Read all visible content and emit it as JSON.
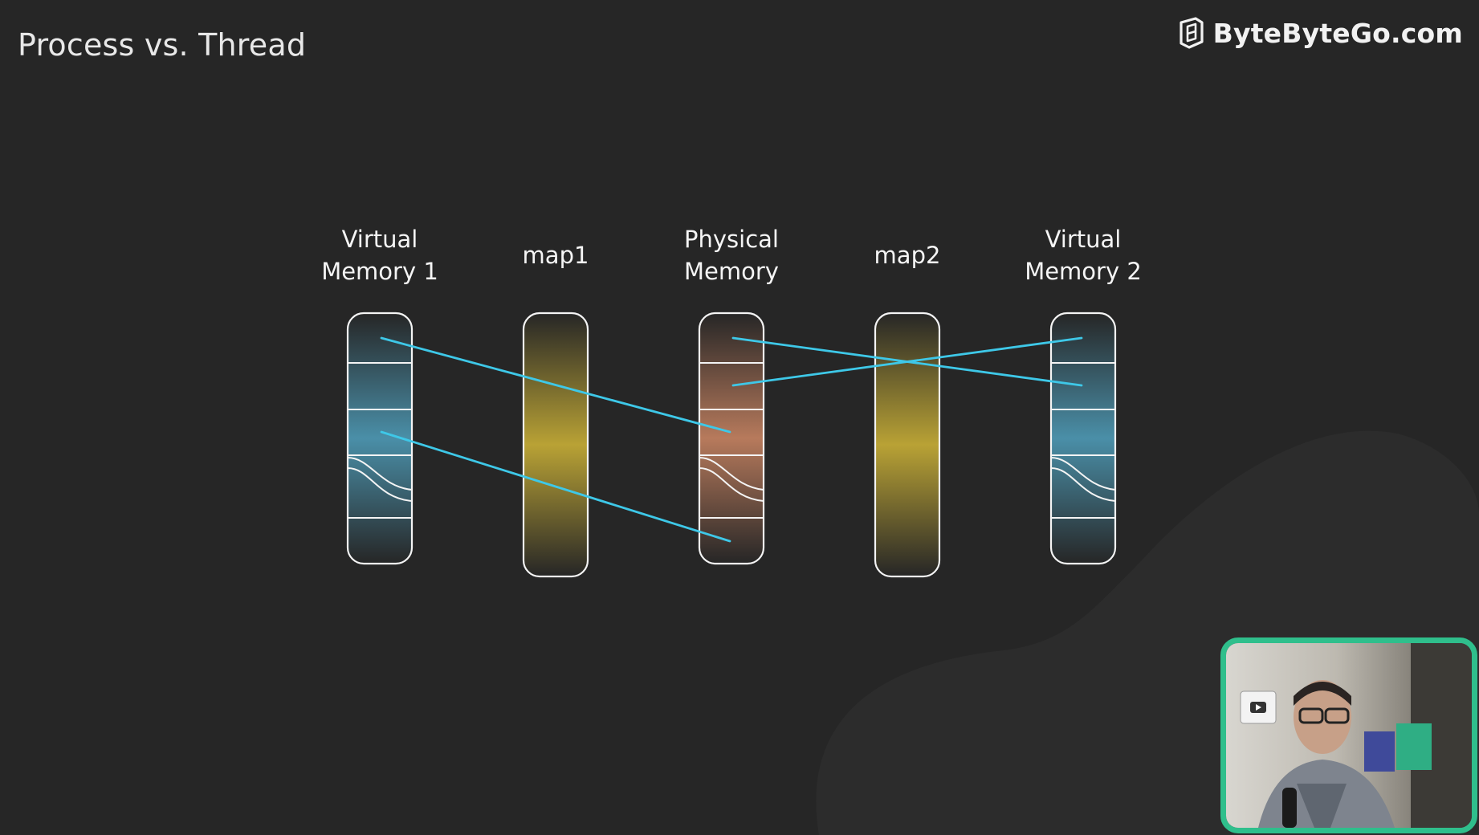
{
  "slide": {
    "title": "Process vs. Thread"
  },
  "brand": {
    "name": "ByteByteGo.com",
    "icon": "bytebytego-logo-icon"
  },
  "diagram": {
    "columns": [
      {
        "id": "vm1",
        "label": "Virtual\nMemory 1",
        "kind": "memory",
        "color": "#4a8fa8"
      },
      {
        "id": "map1",
        "label": "map1",
        "kind": "map",
        "color": "#b9a235"
      },
      {
        "id": "pm",
        "label": "Physical\nMemory",
        "kind": "memory",
        "color": "#b77a5c"
      },
      {
        "id": "map2",
        "label": "map2",
        "kind": "map",
        "color": "#b9a235"
      },
      {
        "id": "vm2",
        "label": "Virtual\nMemory 2",
        "kind": "memory",
        "color": "#4a8fa8"
      }
    ],
    "mapping_line_color": "#3ec8e8",
    "mappings": [
      {
        "from": "vm1",
        "from_slot": 0,
        "to": "pm",
        "to_slot": 2
      },
      {
        "from": "vm1",
        "from_slot": 2,
        "to": "pm",
        "to_slot": 4
      },
      {
        "from": "pm",
        "from_slot": 0,
        "to": "vm2",
        "to_slot": 1
      },
      {
        "from": "pm",
        "from_slot": 1,
        "to": "vm2",
        "to_slot": 0
      }
    ]
  },
  "presenter": {
    "accent_color": "#2fbf8c",
    "name": "presenter-webcam"
  }
}
